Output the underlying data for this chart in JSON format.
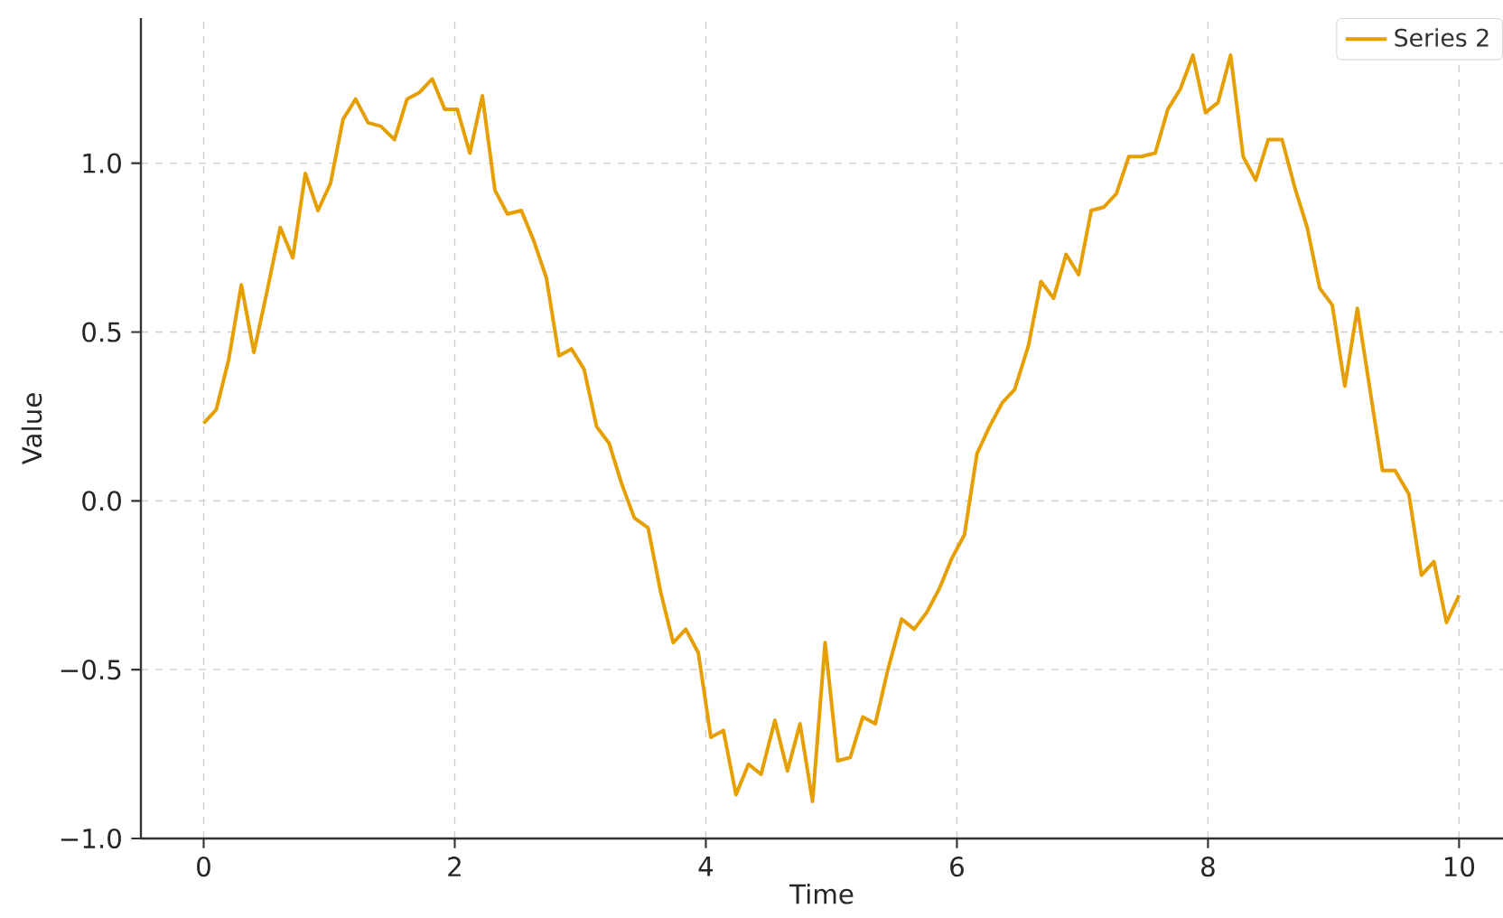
{
  "chart_data": {
    "type": "line",
    "xlabel": "Time",
    "ylabel": "Value",
    "x": [
      0,
      0.1,
      0.2,
      0.3,
      0.4,
      0.51,
      0.61,
      0.71,
      0.81,
      0.91,
      1.01,
      1.11,
      1.21,
      1.31,
      1.41,
      1.52,
      1.62,
      1.72,
      1.82,
      1.92,
      2.02,
      2.12,
      2.22,
      2.32,
      2.42,
      2.53,
      2.63,
      2.73,
      2.83,
      2.93,
      3.03,
      3.13,
      3.23,
      3.33,
      3.43,
      3.54,
      3.64,
      3.74,
      3.84,
      3.94,
      4.04,
      4.14,
      4.24,
      4.34,
      4.44,
      4.55,
      4.65,
      4.75,
      4.85,
      4.95,
      5.05,
      5.15,
      5.25,
      5.35,
      5.45,
      5.56,
      5.66,
      5.76,
      5.86,
      5.96,
      6.06,
      6.16,
      6.26,
      6.36,
      6.46,
      6.57,
      6.67,
      6.77,
      6.87,
      6.97,
      7.07,
      7.17,
      7.27,
      7.37,
      7.47,
      7.58,
      7.68,
      7.78,
      7.88,
      7.98,
      8.08,
      8.18,
      8.28,
      8.38,
      8.48,
      8.59,
      8.69,
      8.79,
      8.89,
      8.99,
      9.09,
      9.19,
      9.29,
      9.39,
      9.49,
      9.6,
      9.7,
      9.8,
      9.9,
      10
    ],
    "series": [
      {
        "name": "Series 2",
        "color": "#e69f00",
        "values": [
          0.23,
          0.27,
          0.42,
          0.64,
          0.44,
          0.63,
          0.81,
          0.72,
          0.97,
          0.86,
          0.94,
          1.13,
          1.19,
          1.12,
          1.11,
          1.07,
          1.19,
          1.21,
          1.25,
          1.16,
          1.16,
          1.03,
          1.2,
          0.92,
          0.85,
          0.86,
          0.77,
          0.66,
          0.43,
          0.45,
          0.39,
          0.22,
          0.17,
          0.05,
          -0.05,
          -0.08,
          -0.27,
          -0.42,
          -0.38,
          -0.45,
          -0.7,
          -0.68,
          -0.87,
          -0.78,
          -0.81,
          -0.65,
          -0.8,
          -0.66,
          -0.89,
          -0.42,
          -0.77,
          -0.76,
          -0.64,
          -0.66,
          -0.5,
          -0.35,
          -0.38,
          -0.33,
          -0.26,
          -0.17,
          -0.1,
          0.14,
          0.22,
          0.29,
          0.33,
          0.46,
          0.65,
          0.6,
          0.73,
          0.67,
          0.86,
          0.87,
          0.91,
          1.02,
          1.02,
          1.03,
          1.16,
          1.22,
          1.32,
          1.15,
          1.18,
          1.32,
          1.02,
          0.95,
          1.07,
          1.07,
          0.93,
          0.81,
          0.63,
          0.58,
          0.34,
          0.57,
          0.33,
          0.09,
          0.09,
          0.02,
          -0.22,
          -0.18,
          -0.36,
          -0.28
        ]
      }
    ],
    "xlim": [
      -0.5,
      10.35
    ],
    "ylim": [
      -1.0,
      1.43
    ],
    "xticks": [
      0,
      2,
      4,
      6,
      8,
      10
    ],
    "yticks": [
      {
        "value": -1.0,
        "label": "−1.0"
      },
      {
        "value": -0.5,
        "label": "−0.5"
      },
      {
        "value": 0.0,
        "label": "0.0"
      },
      {
        "value": 0.5,
        "label": "0.5"
      },
      {
        "value": 1.0,
        "label": "1.0"
      }
    ],
    "grid": true,
    "legend": "top right",
    "line_style": "solid",
    "marker": "none"
  }
}
